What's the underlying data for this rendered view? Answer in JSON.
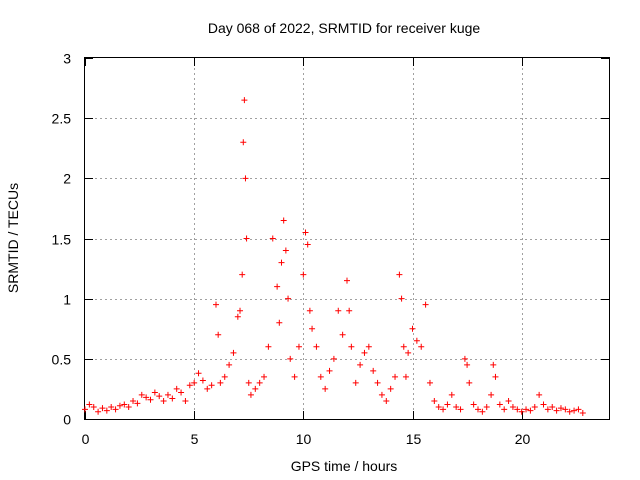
{
  "chart_data": {
    "type": "scatter",
    "title": "Day 068 of 2022, SRMTID for receiver kuge",
    "xlabel": "GPS time / hours",
    "ylabel": "SRMTID / TECUs",
    "xlim": [
      0,
      24
    ],
    "ylim": [
      0,
      3
    ],
    "xticks": [
      0,
      5,
      10,
      15,
      20
    ],
    "xtick_labels": [
      "0",
      "5",
      "10",
      "15",
      "20"
    ],
    "yticks": [
      0,
      0.5,
      1,
      1.5,
      2,
      2.5,
      3
    ],
    "ytick_labels": [
      "0",
      "0.5",
      "1",
      "1.5",
      "2",
      "2.5",
      "3"
    ],
    "grid": true,
    "marker": "+",
    "color": "#ff0000",
    "series": [
      {
        "name": "SRMTID",
        "x": [
          0.0,
          0.2,
          0.4,
          0.6,
          0.8,
          1.0,
          1.2,
          1.4,
          1.6,
          1.8,
          2.0,
          2.2,
          2.4,
          2.6,
          2.8,
          3.0,
          3.2,
          3.4,
          3.6,
          3.8,
          4.0,
          4.2,
          4.4,
          4.6,
          4.8,
          5.0,
          5.2,
          5.4,
          5.6,
          5.8,
          6.0,
          6.1,
          6.2,
          6.4,
          6.6,
          6.8,
          7.0,
          7.1,
          7.2,
          7.25,
          7.3,
          7.35,
          7.4,
          7.5,
          7.6,
          7.8,
          8.0,
          8.2,
          8.4,
          8.6,
          8.8,
          8.9,
          9.0,
          9.1,
          9.2,
          9.3,
          9.4,
          9.6,
          9.8,
          10.0,
          10.1,
          10.2,
          10.3,
          10.4,
          10.6,
          10.8,
          11.0,
          11.2,
          11.4,
          11.6,
          11.8,
          12.0,
          12.1,
          12.2,
          12.4,
          12.6,
          12.8,
          13.0,
          13.2,
          13.4,
          13.6,
          13.8,
          14.0,
          14.2,
          14.4,
          14.5,
          14.6,
          14.7,
          14.8,
          15.0,
          15.2,
          15.4,
          15.6,
          15.8,
          16.0,
          16.2,
          16.4,
          16.6,
          16.8,
          17.0,
          17.2,
          17.4,
          17.5,
          17.6,
          17.8,
          18.0,
          18.2,
          18.4,
          18.6,
          18.7,
          18.8,
          19.0,
          19.2,
          19.4,
          19.6,
          19.8,
          20.0,
          20.2,
          20.4,
          20.6,
          20.8,
          21.0,
          21.2,
          21.4,
          21.6,
          21.8,
          22.0,
          22.2,
          22.4,
          22.6,
          22.8
        ],
        "y": [
          0.08,
          0.12,
          0.1,
          0.06,
          0.09,
          0.07,
          0.1,
          0.08,
          0.11,
          0.12,
          0.1,
          0.15,
          0.13,
          0.2,
          0.18,
          0.16,
          0.22,
          0.19,
          0.15,
          0.2,
          0.17,
          0.25,
          0.22,
          0.15,
          0.28,
          0.3,
          0.38,
          0.32,
          0.25,
          0.28,
          0.95,
          0.7,
          0.3,
          0.35,
          0.45,
          0.55,
          0.85,
          0.9,
          1.2,
          2.3,
          2.65,
          2.0,
          1.5,
          0.3,
          0.2,
          0.25,
          0.3,
          0.35,
          0.6,
          1.5,
          1.1,
          0.8,
          1.3,
          1.65,
          1.4,
          1.0,
          0.5,
          0.35,
          0.6,
          1.2,
          1.55,
          1.45,
          0.9,
          0.75,
          0.6,
          0.35,
          0.25,
          0.4,
          0.5,
          0.9,
          0.7,
          1.15,
          0.9,
          0.6,
          0.3,
          0.45,
          0.55,
          0.6,
          0.4,
          0.3,
          0.2,
          0.15,
          0.25,
          0.35,
          1.2,
          1.0,
          0.6,
          0.35,
          0.55,
          0.75,
          0.65,
          0.6,
          0.95,
          0.3,
          0.15,
          0.1,
          0.08,
          0.12,
          0.2,
          0.1,
          0.08,
          0.5,
          0.45,
          0.3,
          0.12,
          0.08,
          0.06,
          0.1,
          0.2,
          0.45,
          0.35,
          0.12,
          0.08,
          0.15,
          0.1,
          0.08,
          0.06,
          0.08,
          0.07,
          0.1,
          0.2,
          0.12,
          0.08,
          0.1,
          0.07,
          0.09,
          0.08,
          0.06,
          0.07,
          0.08,
          0.05
        ]
      }
    ]
  }
}
